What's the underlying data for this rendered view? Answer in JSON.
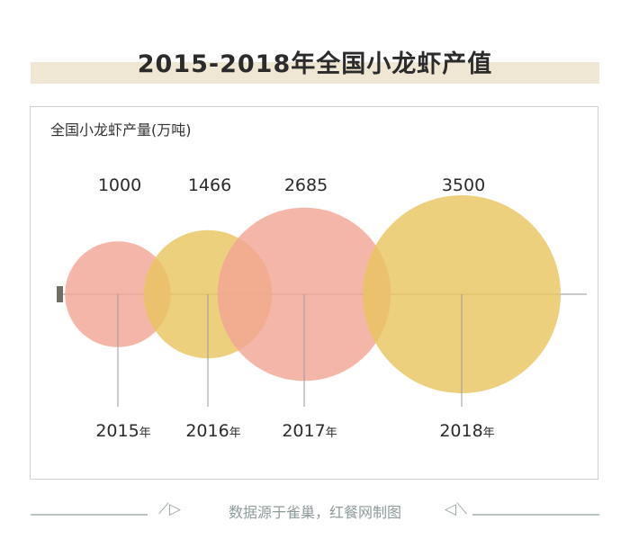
{
  "page_title": "2015-2018年全国小龙虾产值",
  "footer": {
    "source_text": "数据源于雀巢，红餐网制图"
  },
  "chart_data": {
    "type": "bubble",
    "title": "2015-2018年全国小龙虾产值",
    "ylabel": "全国小龙虾产量(万吨)",
    "xlabel": "",
    "categories": [
      "2015年",
      "2016年",
      "2017年",
      "2018年"
    ],
    "year_labels": [
      {
        "num": "2015",
        "suffix": "年"
      },
      {
        "num": "2016",
        "suffix": "年"
      },
      {
        "num": "2017",
        "suffix": "年"
      },
      {
        "num": "2018",
        "suffix": "年"
      }
    ],
    "values": [
      1000,
      1466,
      2685,
      3500
    ],
    "value_labels": [
      "1000",
      "1466",
      "2685",
      "3500"
    ],
    "colors": [
      "#f2a495",
      "#e8c45e",
      "#f2a495",
      "#e8c45e"
    ],
    "grid": false,
    "legend": "none"
  }
}
